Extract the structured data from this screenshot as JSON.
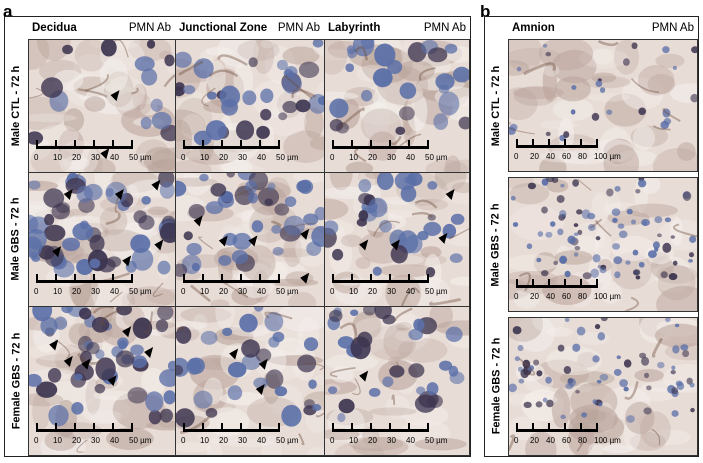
{
  "panel_a": {
    "letter": "a",
    "columns": [
      {
        "name": "Decidua",
        "ab": "PMN Ab"
      },
      {
        "name": "Junctional Zone",
        "ab": "PMN Ab"
      },
      {
        "name": "Labyrinth",
        "ab": "PMN Ab"
      }
    ],
    "rows": [
      "Male CTL - 72 h",
      "Male GBS - 72 h",
      "Female GBS - 72 h"
    ],
    "scale_ticks": [
      "0",
      "10",
      "20",
      "30",
      "40",
      "50 µm"
    ]
  },
  "panel_b": {
    "letter": "b",
    "columns": [
      {
        "name": "Amnion",
        "ab": "PMN Ab"
      }
    ],
    "rows": [
      "Male CTL - 72 h",
      "Male GBS - 72 h",
      "Female GBS - 72 h"
    ],
    "scale_ticks": [
      "0",
      "20",
      "40",
      "60",
      "80",
      "100 µm"
    ]
  },
  "colors": {
    "tissue_light": "#e8dcd6",
    "tissue_mid": "#b9a39a",
    "nucleus_blue": "#5a6fa8",
    "nucleus_dark": "#3d3550",
    "brown_stain": "#6b4a3a"
  }
}
